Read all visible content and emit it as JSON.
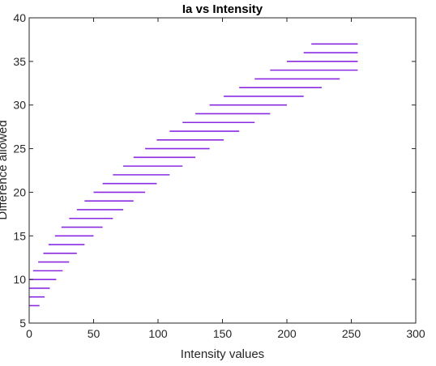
{
  "chart_data": {
    "type": "line",
    "title": "Ia vs Intensity",
    "xlabel": "Intensity values",
    "ylabel": "Difference allowed",
    "xlim": [
      0,
      300
    ],
    "ylim": [
      5,
      40
    ],
    "xticks": [
      0,
      50,
      100,
      150,
      200,
      250,
      300
    ],
    "yticks": [
      5,
      10,
      15,
      20,
      25,
      30,
      35,
      40
    ],
    "grid": false,
    "line_color": "#8A2BE2",
    "segments": [
      {
        "y": 7,
        "x_start": 0,
        "x_end": 8
      },
      {
        "y": 8,
        "x_start": 0,
        "x_end": 12
      },
      {
        "y": 9,
        "x_start": 0,
        "x_end": 16
      },
      {
        "y": 10,
        "x_start": 0,
        "x_end": 21
      },
      {
        "y": 11,
        "x_start": 3,
        "x_end": 26
      },
      {
        "y": 12,
        "x_start": 7,
        "x_end": 31
      },
      {
        "y": 13,
        "x_start": 11,
        "x_end": 37
      },
      {
        "y": 14,
        "x_start": 15,
        "x_end": 43
      },
      {
        "y": 15,
        "x_start": 20,
        "x_end": 50
      },
      {
        "y": 16,
        "x_start": 25,
        "x_end": 57
      },
      {
        "y": 17,
        "x_start": 31,
        "x_end": 65
      },
      {
        "y": 18,
        "x_start": 37,
        "x_end": 73
      },
      {
        "y": 19,
        "x_start": 43,
        "x_end": 81
      },
      {
        "y": 20,
        "x_start": 50,
        "x_end": 90
      },
      {
        "y": 21,
        "x_start": 57,
        "x_end": 99
      },
      {
        "y": 22,
        "x_start": 65,
        "x_end": 109
      },
      {
        "y": 23,
        "x_start": 73,
        "x_end": 119
      },
      {
        "y": 24,
        "x_start": 81,
        "x_end": 129
      },
      {
        "y": 25,
        "x_start": 90,
        "x_end": 140
      },
      {
        "y": 26,
        "x_start": 99,
        "x_end": 151
      },
      {
        "y": 27,
        "x_start": 109,
        "x_end": 163
      },
      {
        "y": 28,
        "x_start": 119,
        "x_end": 175
      },
      {
        "y": 29,
        "x_start": 129,
        "x_end": 187
      },
      {
        "y": 30,
        "x_start": 140,
        "x_end": 200
      },
      {
        "y": 31,
        "x_start": 151,
        "x_end": 213
      },
      {
        "y": 32,
        "x_start": 163,
        "x_end": 227
      },
      {
        "y": 33,
        "x_start": 175,
        "x_end": 241
      },
      {
        "y": 34,
        "x_start": 187,
        "x_end": 255
      },
      {
        "y": 35,
        "x_start": 200,
        "x_end": 255
      },
      {
        "y": 36,
        "x_start": 213,
        "x_end": 255
      },
      {
        "y": 37,
        "x_start": 219,
        "x_end": 255
      }
    ]
  }
}
